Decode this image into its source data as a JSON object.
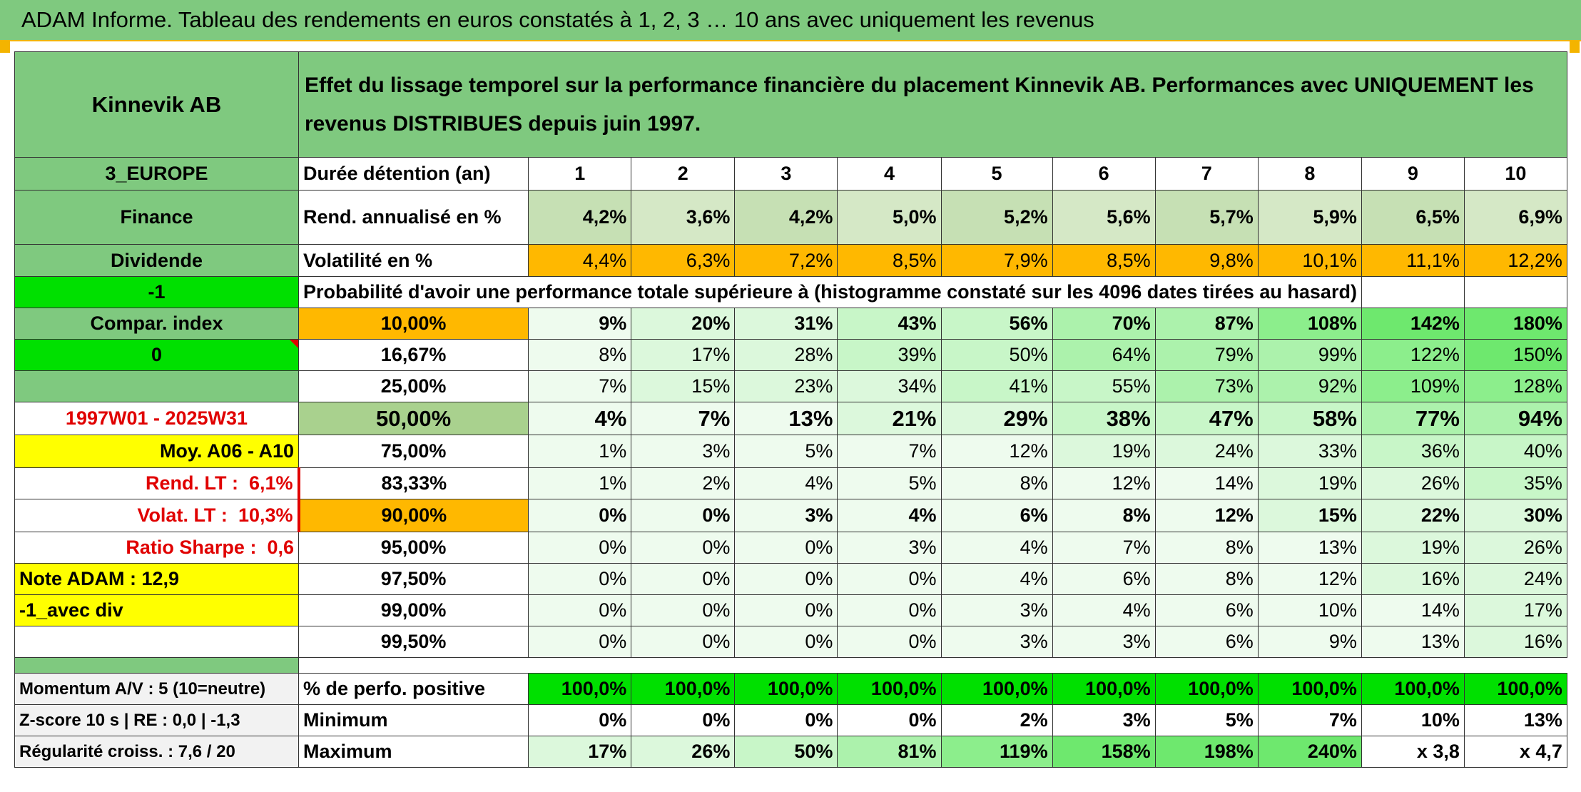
{
  "title": "ADAM Informe. Tableau des rendements en euros constatés à 1, 2, 3 … 10 ans avec uniquement les revenus",
  "header": {
    "asset": "Kinnevik AB",
    "description": "Effet du lissage temporel sur la performance financière du placement Kinnevik AB. Performances avec UNIQUEMENT les revenus DISTRIBUES depuis juin 1997."
  },
  "side": {
    "region": "3_EUROPE",
    "sector": "Finance",
    "type": "Dividende",
    "signal1": "-1",
    "compar_index": "Compar. index",
    "signal2": "0",
    "period": "1997W01 - 2025W31",
    "moy": "Moy. A06 - A10",
    "rend_lt_label": "Rend. LT :",
    "rend_lt_value": "6,1%",
    "volat_lt_label": "Volat. LT :",
    "volat_lt_value": "10,3%",
    "sharpe_label": "Ratio Sharpe :",
    "sharpe_value": "0,6",
    "note": "Note ADAM : 12,9",
    "avec_div": "-1_avec div",
    "momentum": "Momentum A/V : 5 (10=neutre)",
    "zscore": "Z-score 10 s | RE : 0,0 | -1,3",
    "regularite": "Régularité croiss. : 7,6 / 20"
  },
  "years_label": "Durée détention (an)",
  "years": [
    "1",
    "2",
    "3",
    "4",
    "5",
    "6",
    "7",
    "8",
    "9",
    "10"
  ],
  "rend_label": "Rend. annualisé en %",
  "rend": [
    "4,2%",
    "3,6%",
    "4,2%",
    "5,0%",
    "5,2%",
    "5,6%",
    "5,7%",
    "5,9%",
    "6,5%",
    "6,9%"
  ],
  "vol_label": "Volatilité en %",
  "vol": [
    "4,4%",
    "6,3%",
    "7,2%",
    "8,5%",
    "7,9%",
    "8,5%",
    "9,8%",
    "10,1%",
    "11,1%",
    "12,2%"
  ],
  "prob_label": "Probabilité d'avoir une performance totale supérieure à (histogramme constaté sur les 4096 dates tirées au hasard)",
  "prob_rows": [
    {
      "pct": "10,00%",
      "values": [
        "9%",
        "20%",
        "31%",
        "43%",
        "56%",
        "70%",
        "87%",
        "108%",
        "142%",
        "180%"
      ]
    },
    {
      "pct": "16,67%",
      "values": [
        "8%",
        "17%",
        "28%",
        "39%",
        "50%",
        "64%",
        "79%",
        "99%",
        "122%",
        "150%"
      ]
    },
    {
      "pct": "25,00%",
      "values": [
        "7%",
        "15%",
        "23%",
        "34%",
        "41%",
        "55%",
        "73%",
        "92%",
        "109%",
        "128%"
      ]
    },
    {
      "pct": "50,00%",
      "values": [
        "4%",
        "7%",
        "13%",
        "21%",
        "29%",
        "38%",
        "47%",
        "58%",
        "77%",
        "94%"
      ]
    },
    {
      "pct": "75,00%",
      "values": [
        "1%",
        "3%",
        "5%",
        "7%",
        "12%",
        "19%",
        "24%",
        "33%",
        "36%",
        "40%"
      ]
    },
    {
      "pct": "83,33%",
      "values": [
        "1%",
        "2%",
        "4%",
        "5%",
        "8%",
        "12%",
        "14%",
        "19%",
        "26%",
        "35%"
      ]
    },
    {
      "pct": "90,00%",
      "values": [
        "0%",
        "0%",
        "3%",
        "4%",
        "6%",
        "8%",
        "12%",
        "15%",
        "22%",
        "30%"
      ]
    },
    {
      "pct": "95,00%",
      "values": [
        "0%",
        "0%",
        "0%",
        "3%",
        "4%",
        "7%",
        "8%",
        "13%",
        "19%",
        "26%"
      ]
    },
    {
      "pct": "97,50%",
      "values": [
        "0%",
        "0%",
        "0%",
        "0%",
        "4%",
        "6%",
        "8%",
        "12%",
        "16%",
        "24%"
      ]
    },
    {
      "pct": "99,00%",
      "values": [
        "0%",
        "0%",
        "0%",
        "0%",
        "3%",
        "4%",
        "6%",
        "10%",
        "14%",
        "17%"
      ]
    },
    {
      "pct": "99,50%",
      "values": [
        "0%",
        "0%",
        "0%",
        "0%",
        "3%",
        "3%",
        "6%",
        "9%",
        "13%",
        "16%"
      ]
    }
  ],
  "pos_label": "% de perfo. positive",
  "pos": [
    "100,0%",
    "100,0%",
    "100,0%",
    "100,0%",
    "100,0%",
    "100,0%",
    "100,0%",
    "100,0%",
    "100,0%",
    "100,0%"
  ],
  "min_label": "Minimum",
  "min": [
    "0%",
    "0%",
    "0%",
    "0%",
    "2%",
    "3%",
    "5%",
    "7%",
    "10%",
    "13%"
  ],
  "max_label": "Maximum",
  "max": [
    "17%",
    "26%",
    "50%",
    "81%",
    "119%",
    "158%",
    "198%",
    "240%",
    "x 3,8",
    "x 4,7"
  ],
  "colors": {
    "header_green": "#7fc97f",
    "bright_green": "#00e000",
    "yellow": "#ffff00",
    "orange": "#ffb800",
    "red": "#e00000"
  }
}
